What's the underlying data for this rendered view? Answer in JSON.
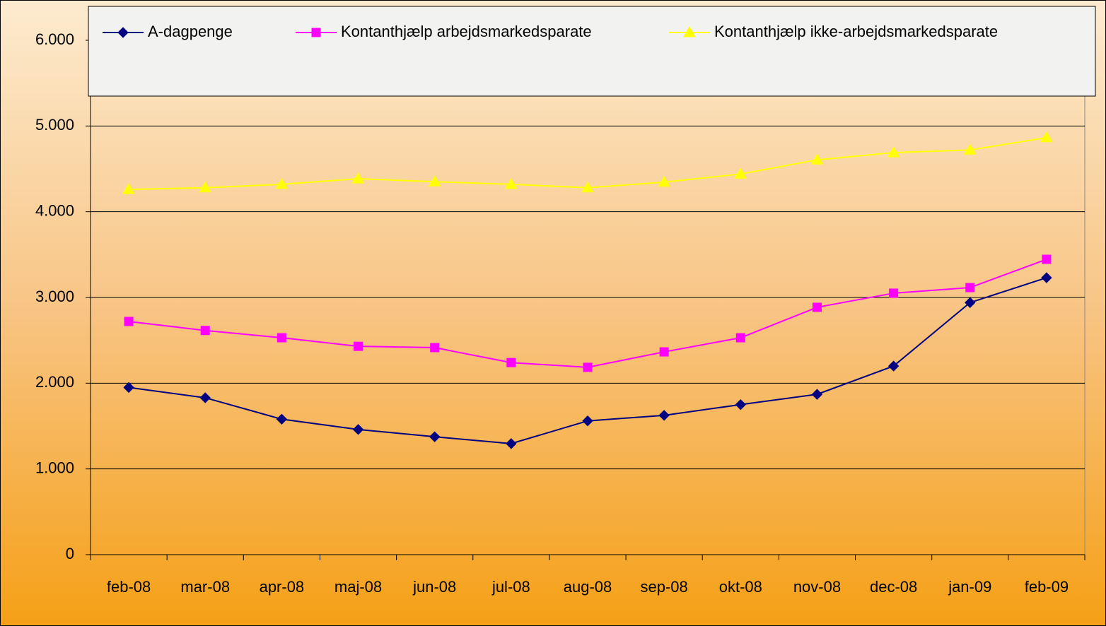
{
  "chart_data": {
    "type": "line",
    "categories": [
      "feb-08",
      "mar-08",
      "apr-08",
      "maj-08",
      "jun-08",
      "jul-08",
      "aug-08",
      "sep-08",
      "okt-08",
      "nov-08",
      "dec-08",
      "jan-09",
      "feb-09"
    ],
    "series": [
      {
        "name": "A-dagpenge",
        "color": "#000080",
        "marker": "diamond",
        "values": [
          1950,
          1830,
          1580,
          1460,
          1375,
          1295,
          1560,
          1625,
          1750,
          1870,
          2200,
          2940,
          3230
        ]
      },
      {
        "name": "Kontanthjælp arbejdsmarkedsparate",
        "color": "#ff00ff",
        "marker": "square",
        "values": [
          2720,
          2615,
          2530,
          2430,
          2415,
          2240,
          2185,
          2365,
          2530,
          2885,
          3050,
          3115,
          3445
        ]
      },
      {
        "name": "Kontanthjælp ikke-arbejdsmarkedsparate",
        "color": "#ffff00",
        "marker": "triangle",
        "values": [
          4260,
          4280,
          4320,
          4385,
          4350,
          4320,
          4280,
          4345,
          4440,
          4605,
          4690,
          4720,
          4865
        ]
      }
    ],
    "ylim": [
      0,
      6000
    ],
    "yticks": [
      0,
      {
        "value": 1000,
        "label": "1.000"
      },
      {
        "value": 2000,
        "label": "2.000"
      },
      {
        "value": 3000,
        "label": "3.000"
      },
      {
        "value": 4000,
        "label": "4.000"
      },
      {
        "value": 5000,
        "label": "5.000"
      },
      {
        "value": 6000,
        "label": "6.000"
      }
    ],
    "grid": true,
    "legend": "top"
  }
}
